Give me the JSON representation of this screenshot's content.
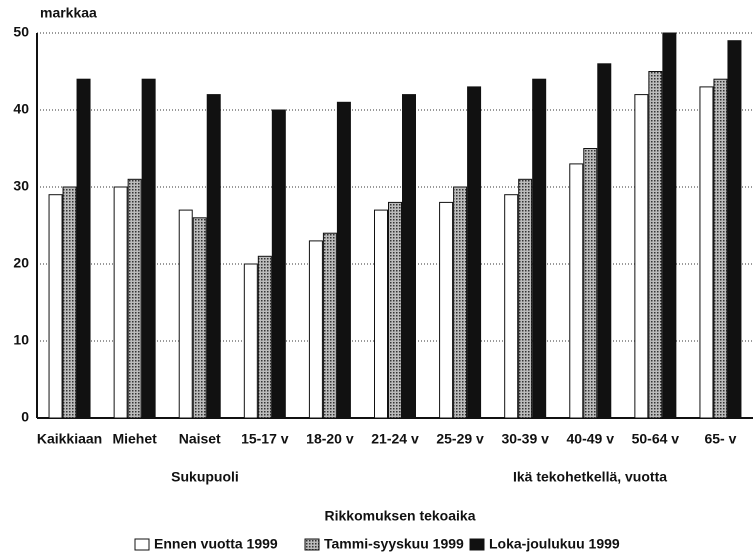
{
  "chart_data": {
    "type": "bar",
    "y_label": "markkaa",
    "categories": [
      "Kaikkiaan",
      "Miehet",
      "Naiset",
      "15-17 v",
      "18-20 v",
      "21-24 v",
      "25-29 v",
      "30-39 v",
      "40-49 v",
      "50-64 v",
      "65- v"
    ],
    "group_labels": [
      "Sukupuoli",
      "Ikä tekohetkellä, vuotta"
    ],
    "legend_title": "Rikkomuksen tekoaika",
    "series": [
      {
        "name": "Ennen vuotta 1999",
        "color": "#ffffff",
        "values": [
          29,
          30,
          27,
          20,
          23,
          27,
          28,
          29,
          33,
          42,
          43
        ]
      },
      {
        "name": "Tammi-syyskuu 1999",
        "color": "#8a8a8a",
        "values": [
          30,
          31,
          26,
          21,
          24,
          28,
          30,
          31,
          35,
          45,
          44
        ]
      },
      {
        "name": "Loka-joulukuu 1999",
        "color": "#111111",
        "values": [
          44,
          44,
          42,
          40,
          41,
          42,
          43,
          44,
          46,
          50,
          49
        ]
      }
    ],
    "ylim": [
      0,
      50
    ],
    "yticks": [
      0,
      10,
      20,
      30,
      40,
      50
    ],
    "grid": true
  }
}
